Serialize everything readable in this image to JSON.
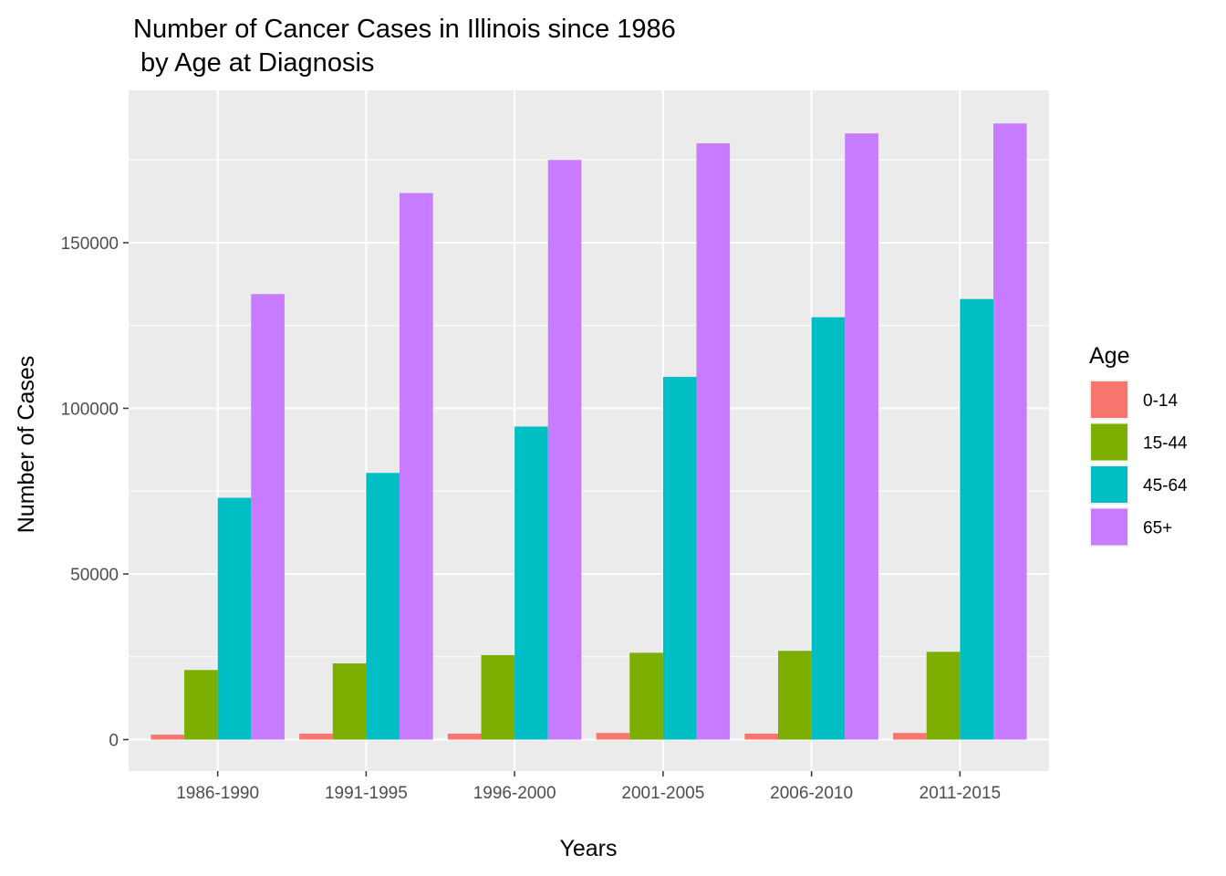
{
  "chart_data": {
    "type": "bar",
    "title_line1": "Number of Cancer Cases in Illinois since 1986",
    "title_line2": " by Age at Diagnosis",
    "xlabel": "Years",
    "ylabel": "Number of Cases",
    "categories": [
      "1986-1990",
      "1991-1995",
      "1996-2000",
      "2001-2005",
      "2006-2010",
      "2011-2015"
    ],
    "ylim": [
      -9500,
      196000
    ],
    "yticks": [
      0,
      50000,
      100000,
      150000
    ],
    "ytick_labels": [
      "0",
      "50000",
      "100000",
      "150000"
    ],
    "grid": true,
    "legend": {
      "title": "Age",
      "position": "right"
    },
    "series": [
      {
        "name": "0-14",
        "color": "#F8766D",
        "values": [
          1500,
          1800,
          1800,
          2000,
          1800,
          2000
        ]
      },
      {
        "name": "15-44",
        "color": "#7CAE00",
        "values": [
          21000,
          23000,
          25500,
          26200,
          26800,
          26500
        ]
      },
      {
        "name": "45-64",
        "color": "#00BFC4",
        "values": [
          73000,
          80500,
          94500,
          109500,
          127500,
          133000
        ]
      },
      {
        "name": "65+",
        "color": "#C77CFF",
        "values": [
          134500,
          165000,
          175000,
          180000,
          183000,
          186000
        ]
      }
    ]
  }
}
